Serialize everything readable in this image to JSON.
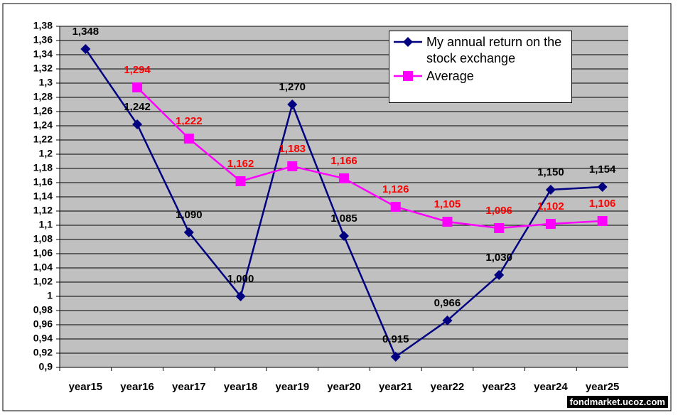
{
  "chart_data": {
    "type": "line",
    "categories": [
      "year15",
      "year16",
      "year17",
      "year18",
      "year19",
      "year20",
      "year21",
      "year22",
      "year23",
      "year24",
      "year25"
    ],
    "series": [
      {
        "name": "My annual return on the stock exchange",
        "color": "#000080",
        "marker": "diamond",
        "label_color": "#000000",
        "values": [
          1.348,
          1.242,
          1.09,
          1.0,
          1.27,
          1.085,
          0.915,
          0.966,
          1.03,
          1.15,
          1.154
        ],
        "value_labels": [
          "1,348",
          "1,242",
          "1,090",
          "1,000",
          "1,270",
          "1,085",
          "0,915",
          "0,966",
          "1,030",
          "1,150",
          "1,154"
        ]
      },
      {
        "name": "Average",
        "color": "#ff00ff",
        "marker": "square",
        "label_color": "#ff0000",
        "values": [
          null,
          1.294,
          1.222,
          1.162,
          1.183,
          1.166,
          1.126,
          1.105,
          1.096,
          1.102,
          1.106
        ],
        "value_labels": [
          null,
          "1,294",
          "1,222",
          "1,162",
          "1,183",
          "1,166",
          "1,126",
          "1,105",
          "1,096",
          "1,102",
          "1,106"
        ]
      }
    ],
    "ylim": [
      0.9,
      1.38
    ],
    "yticks": [
      {
        "value": 0.9,
        "label": "0,9"
      },
      {
        "value": 0.92,
        "label": "0,92"
      },
      {
        "value": 0.94,
        "label": "0,94"
      },
      {
        "value": 0.96,
        "label": "0,96"
      },
      {
        "value": 0.98,
        "label": "0,98"
      },
      1,
      {
        "value": 1.02,
        "label": "1,02"
      },
      {
        "value": 1.04,
        "label": "1,04"
      },
      {
        "value": 1.06,
        "label": "1,06"
      },
      {
        "value": 1.08,
        "label": "1,08"
      },
      {
        "value": 1.1,
        "label": "1,1"
      },
      {
        "value": 1.12,
        "label": "1,12"
      },
      {
        "value": 1.14,
        "label": "1,14"
      },
      {
        "value": 1.16,
        "label": "1,16"
      },
      {
        "value": 1.18,
        "label": "1,18"
      },
      {
        "value": 1.2,
        "label": "1,2"
      },
      {
        "value": 1.22,
        "label": "1,22"
      },
      {
        "value": 1.24,
        "label": "1,24"
      },
      {
        "value": 1.26,
        "label": "1,26"
      },
      {
        "value": 1.28,
        "label": "1,28"
      },
      {
        "value": 1.3,
        "label": "1,3"
      },
      {
        "value": 1.32,
        "label": "1,32"
      },
      {
        "value": 1.34,
        "label": "1,34"
      },
      {
        "value": 1.36,
        "label": "1,36"
      },
      {
        "value": 1.38,
        "label": "1,38"
      }
    ],
    "grid": true,
    "plot_background": "#c0c0c0",
    "legend": "upper right",
    "watermark": "fondmarket.ucoz.com"
  }
}
